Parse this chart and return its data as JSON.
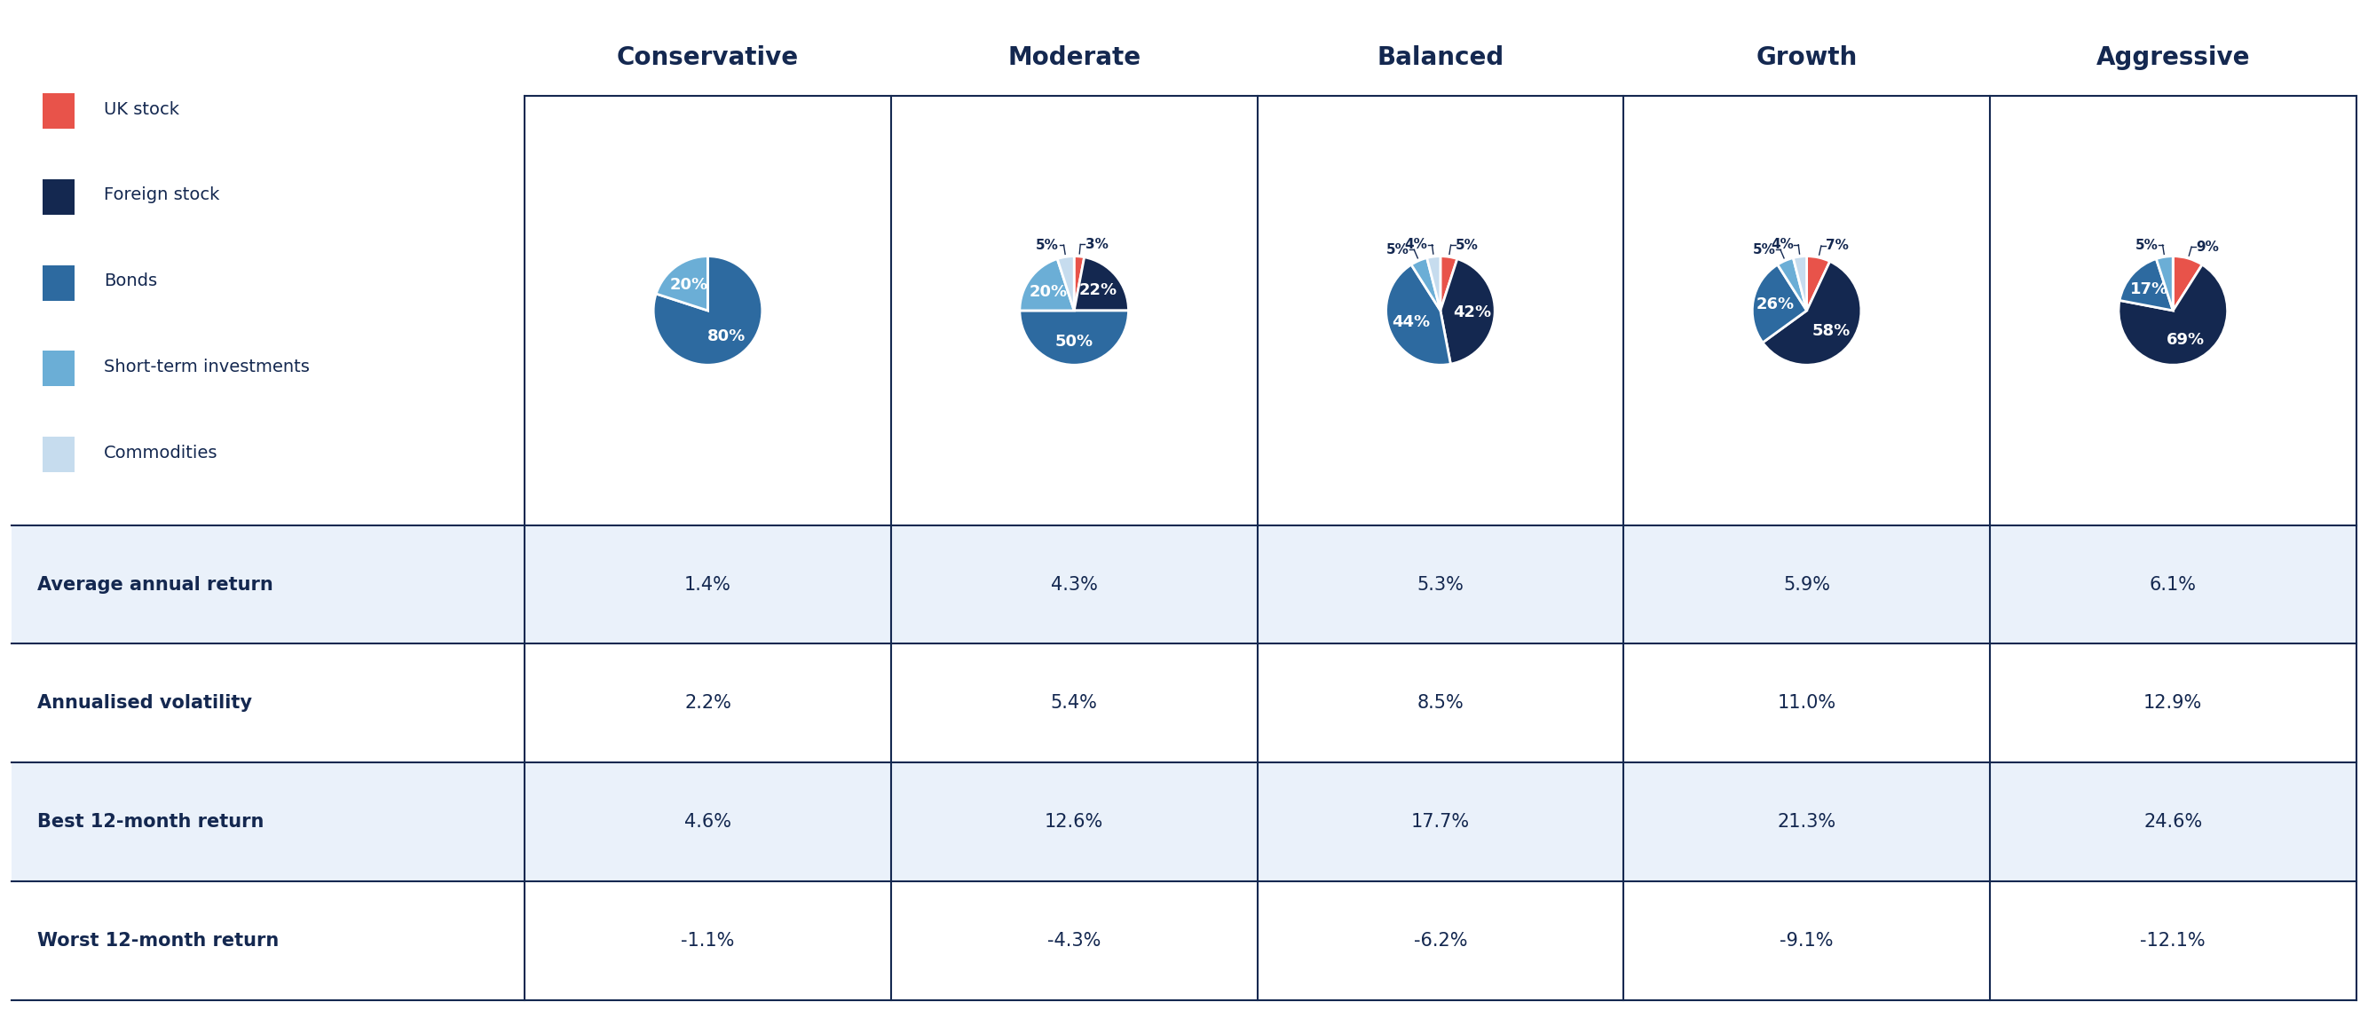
{
  "portfolios": [
    "Conservative",
    "Moderate",
    "Balanced",
    "Growth",
    "Aggressive"
  ],
  "pie_data": {
    "Conservative": {
      "slices": [
        0,
        0,
        80,
        20,
        0
      ],
      "labels_in": [
        "",
        "",
        "80%",
        "20%",
        ""
      ],
      "labels_out": [
        "",
        "",
        "",
        "",
        ""
      ]
    },
    "Moderate": {
      "slices": [
        3,
        22,
        50,
        20,
        5
      ],
      "labels_in": [
        "",
        "22%",
        "50%",
        "20%",
        ""
      ],
      "labels_out": [
        "3%",
        "",
        "",
        "",
        "5%"
      ]
    },
    "Balanced": {
      "slices": [
        5,
        42,
        44,
        5,
        4
      ],
      "labels_in": [
        "",
        "42%",
        "44%",
        "",
        ""
      ],
      "labels_out": [
        "5%",
        "",
        "",
        "5%",
        "4%"
      ]
    },
    "Growth": {
      "slices": [
        7,
        58,
        26,
        5,
        4
      ],
      "labels_in": [
        "",
        "58%",
        "26%",
        "",
        ""
      ],
      "labels_out": [
        "7%",
        "",
        "",
        "5%",
        "4%"
      ]
    },
    "Aggressive": {
      "slices": [
        9,
        69,
        17,
        5,
        0
      ],
      "labels_in": [
        "",
        "69%",
        "17%",
        "",
        ""
      ],
      "labels_out": [
        "9%",
        "",
        "",
        "5%",
        ""
      ]
    }
  },
  "slice_colors": [
    "#E8534A",
    "#142850",
    "#2D6AA0",
    "#6BAED6",
    "#C6DCEE"
  ],
  "legend_labels": [
    "UK stock",
    "Foreign stock",
    "Bonds",
    "Short-term investments",
    "Commodities"
  ],
  "stats": {
    "labels": [
      "Average annual return",
      "Annualised volatility",
      "Best 12-month return",
      "Worst 12-month return"
    ],
    "Conservative": [
      "1.4%",
      "2.2%",
      "4.6%",
      "-1.1%"
    ],
    "Moderate": [
      "4.3%",
      "5.4%",
      "12.6%",
      "-4.3%"
    ],
    "Balanced": [
      "5.3%",
      "8.5%",
      "17.7%",
      "-6.2%"
    ],
    "Growth": [
      "5.9%",
      "11.0%",
      "21.3%",
      "-9.1%"
    ],
    "Aggressive": [
      "6.1%",
      "12.9%",
      "24.6%",
      "-12.1%"
    ]
  },
  "background_color": "#FFFFFF",
  "table_bg_even": "#EAF1FA",
  "table_bg_odd": "#FFFFFF",
  "text_color": "#142850",
  "grid_line_color": "#142850",
  "header_fontsize": 20,
  "stat_label_fontsize": 15,
  "stat_val_fontsize": 15,
  "legend_fontsize": 14,
  "pie_label_in_fontsize": 13,
  "pie_label_out_fontsize": 11
}
